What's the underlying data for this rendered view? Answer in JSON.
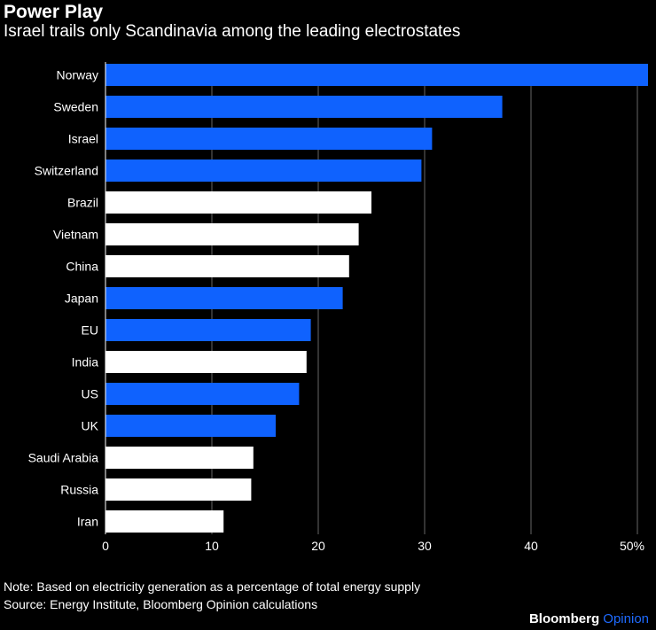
{
  "header": {
    "title": "Power Play",
    "subtitle": "Israel trails only Scandinavia among the leading electrostates"
  },
  "footer": {
    "note": "Note: Based on electricity generation as a percentage of total energy supply",
    "source": "Source: Energy Institute, Bloomberg Opinion calculations",
    "brand_main": "Bloomberg",
    "brand_sub": "Opinion"
  },
  "colors": {
    "highlight": "#0f62fe",
    "other": "#ffffff",
    "background": "#000000",
    "grid": "#666666",
    "brand_accent": "#1f6bff"
  },
  "chart_data": {
    "type": "bar",
    "orientation": "horizontal",
    "title": "Power Play",
    "subtitle": "Israel trails only Scandinavia among the leading electrostates",
    "categories": [
      "Norway",
      "Sweden",
      "Israel",
      "Switzerland",
      "Brazil",
      "Vietnam",
      "China",
      "Japan",
      "EU",
      "India",
      "US",
      "UK",
      "Saudi Arabia",
      "Russia",
      "Iran"
    ],
    "values": [
      51.0,
      37.3,
      30.7,
      29.7,
      25.0,
      23.8,
      22.9,
      22.3,
      19.3,
      18.9,
      18.2,
      16.0,
      13.9,
      13.7,
      11.1
    ],
    "highlighted": [
      true,
      true,
      true,
      true,
      false,
      false,
      false,
      true,
      true,
      false,
      true,
      true,
      false,
      false,
      false
    ],
    "xticks": [
      0,
      10,
      20,
      30,
      40,
      50
    ],
    "xtick_labels": [
      "0",
      "10",
      "20",
      "30",
      "40",
      "50%"
    ],
    "xlim": [
      0,
      51
    ],
    "grid": true
  }
}
